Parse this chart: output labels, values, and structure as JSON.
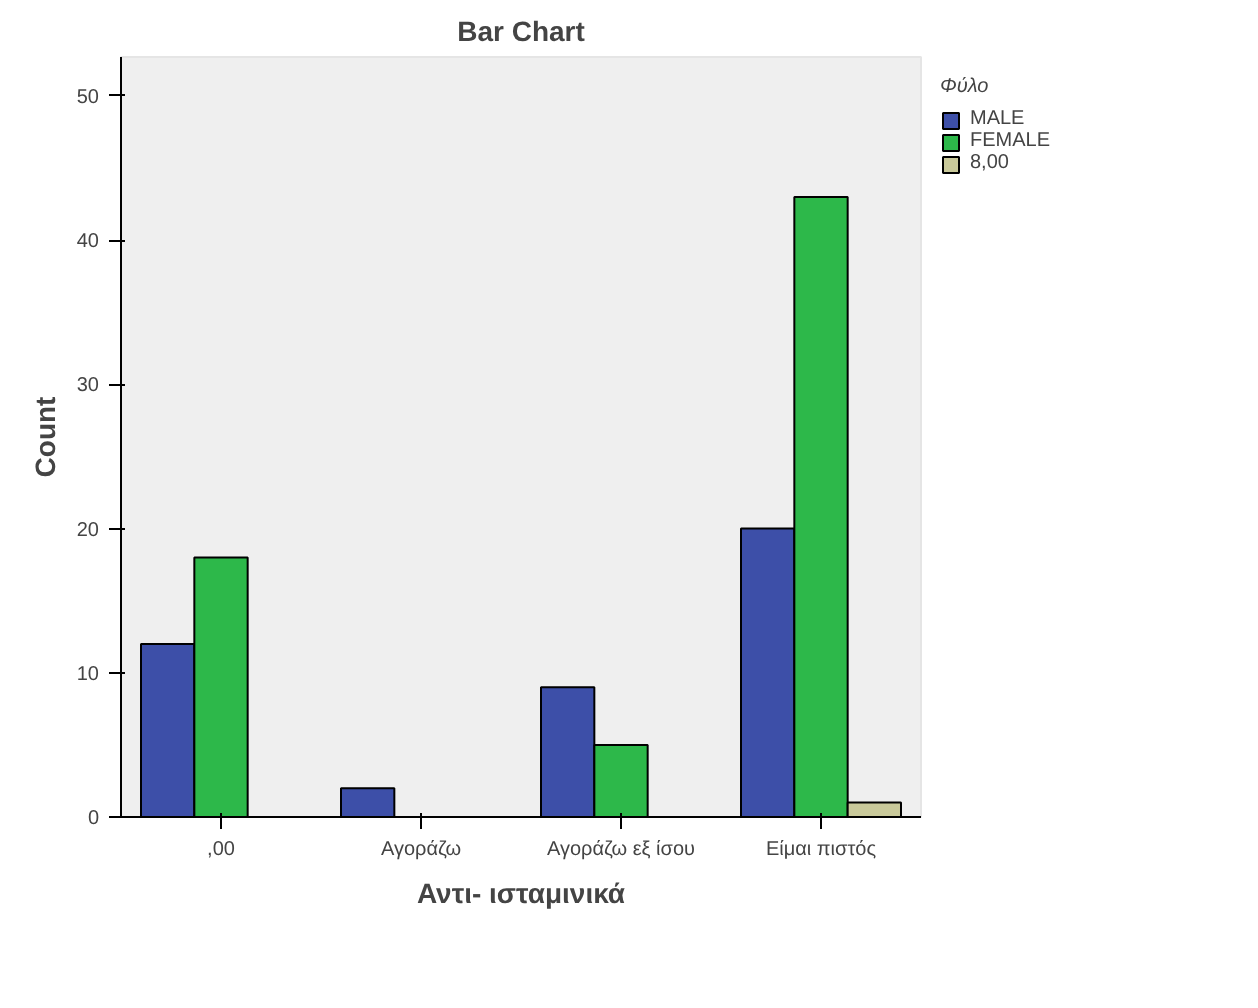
{
  "chart_data": {
    "type": "bar",
    "title": "Bar Chart",
    "xlabel": "Αντι- ισταμινικά",
    "ylabel": "Count",
    "legend_title": "Φύλο",
    "categories": [
      ",00",
      "Αγοράζω",
      "Αγοράζω εξ ίσου",
      "Είμαι πιστός"
    ],
    "series": [
      {
        "name": "MALE",
        "color": "#3d4fa8",
        "values": [
          12,
          2,
          9,
          20
        ]
      },
      {
        "name": "FEMALE",
        "color": "#2db84a",
        "values": [
          18,
          null,
          5,
          43
        ]
      },
      {
        "name": "8,00",
        "color": "#c9c99a",
        "values": [
          null,
          null,
          null,
          1
        ]
      }
    ],
    "ylim": [
      0,
      52.7
    ],
    "yticks": [
      0,
      10,
      20,
      30,
      40,
      50
    ],
    "grid": false,
    "legend": "top right"
  }
}
